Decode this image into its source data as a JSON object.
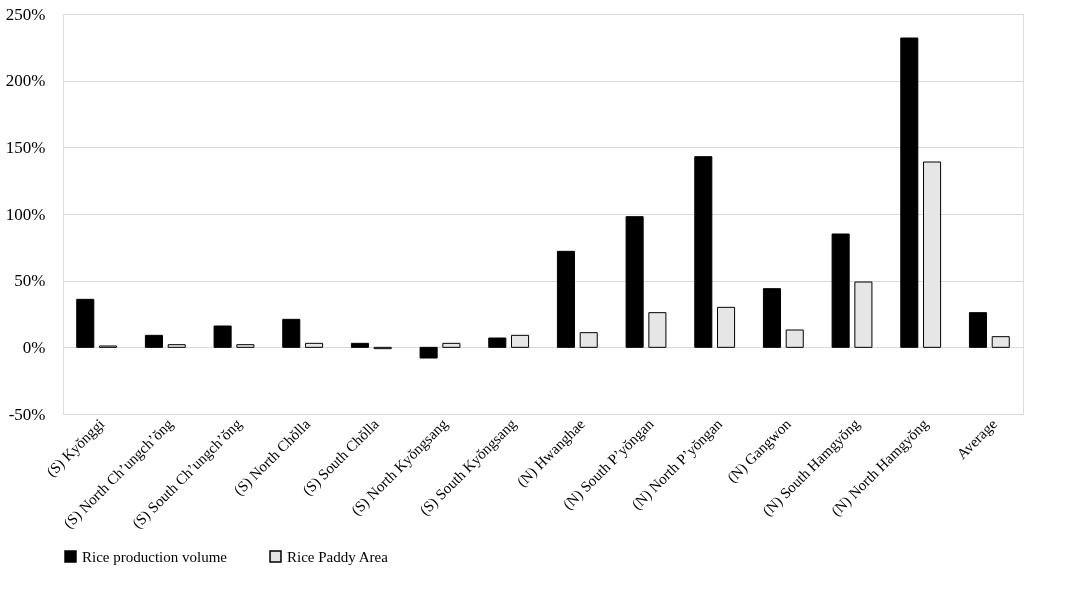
{
  "chart_data": {
    "type": "bar",
    "categories": [
      "(S) Kyŏnggi",
      "(S) North Ch’ungch’ŏng",
      "(S) South Ch’ungch’ŏng",
      "(S) North Chŏlla",
      "(S) South Chŏlla",
      "(S) North Kyŏngsang",
      "(S) South Kyŏngsang",
      "(N) Hwanghae",
      "(N) South P’yŏngan",
      "(N) North P’yŏngan",
      "(N) Gangwon",
      "(N) South Hamgyŏng",
      "(N) North Hamgyŏng",
      "Average"
    ],
    "series": [
      {
        "name": "Rice production volume",
        "color": "#000000",
        "values": [
          36,
          9,
          16,
          21,
          3,
          -8,
          7,
          72,
          98,
          143,
          44,
          85,
          232,
          26
        ]
      },
      {
        "name": "Rice Paddy Area",
        "color": "#e6e6e6",
        "values": [
          1,
          2,
          2,
          3,
          -1,
          3,
          9,
          11,
          26,
          30,
          13,
          49,
          139,
          8
        ]
      }
    ],
    "ylim": [
      -50,
      250
    ],
    "yticks": [
      {
        "value": -50,
        "label": "-50%"
      },
      {
        "value": 0,
        "label": "0%"
      },
      {
        "value": 50,
        "label": "50%"
      },
      {
        "value": 100,
        "label": "100%"
      },
      {
        "value": 150,
        "label": "150%"
      },
      {
        "value": 200,
        "label": "200%"
      },
      {
        "value": 250,
        "label": "250%"
      }
    ],
    "grid": "y",
    "legend": "bottom"
  }
}
